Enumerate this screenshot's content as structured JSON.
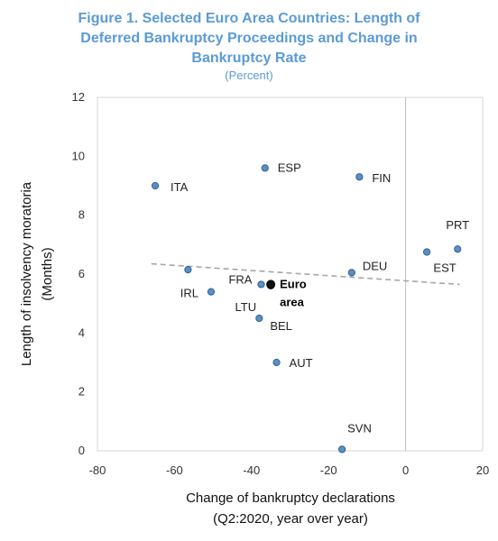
{
  "chart_data": {
    "type": "scatter",
    "title_lines": [
      "Figure 1. Selected Euro Area Countries: Length of",
      "Deferred Bankruptcy Proceedings and Change in",
      "Bankruptcy Rate"
    ],
    "subtitle": "(Percent)",
    "xlabel_lines": [
      "Change of bankruptcy declarations",
      "(Q2:2020, year over year)"
    ],
    "ylabel_lines": [
      "Length of insolvency moratoria",
      "(Months)"
    ],
    "xlim": [
      -80,
      20
    ],
    "ylim": [
      0,
      12
    ],
    "xticks": [
      -80,
      -60,
      -40,
      -20,
      0,
      20
    ],
    "yticks": [
      0,
      2,
      4,
      6,
      8,
      10,
      12
    ],
    "zero_line_x": 0,
    "trendline": {
      "x": [
        -66,
        14
      ],
      "y": [
        6.35,
        5.65
      ]
    },
    "points": [
      {
        "label": "ITA",
        "x": -65,
        "y": 9.0,
        "highlight": false
      },
      {
        "label": "ESP",
        "x": -36.5,
        "y": 9.6,
        "highlight": false
      },
      {
        "label": "FIN",
        "x": -12,
        "y": 9.3,
        "highlight": false
      },
      {
        "label": "PRT",
        "x": 13.5,
        "y": 6.85,
        "highlight": false
      },
      {
        "label": "EST",
        "x": 5.5,
        "y": 6.75,
        "highlight": false
      },
      {
        "label": "DEU",
        "x": -14,
        "y": 6.05,
        "highlight": false
      },
      {
        "label": "",
        "x": -56.5,
        "y": 6.15,
        "highlight": false
      },
      {
        "label": "IRL",
        "x": -50.5,
        "y": 5.4,
        "highlight": false
      },
      {
        "label": "FRA",
        "x": -37.5,
        "y": 5.65,
        "highlight": false
      },
      {
        "label": "LTU",
        "x": -35,
        "y": 5.6,
        "highlight": false
      },
      {
        "label": "Euro area",
        "x": -35,
        "y": 5.65,
        "highlight": true
      },
      {
        "label": "BEL",
        "x": -38,
        "y": 4.5,
        "highlight": false
      },
      {
        "label": "AUT",
        "x": -33.5,
        "y": 3.0,
        "highlight": false
      },
      {
        "label": "SVN",
        "x": -16.5,
        "y": 0.05,
        "highlight": false
      }
    ],
    "colors": {
      "point_fill": "#5b8fc7",
      "point_stroke": "#2f5f8f",
      "highlight_fill": "#111111",
      "trendline": "#a6a6a6",
      "title": "#5b9bd5"
    }
  }
}
